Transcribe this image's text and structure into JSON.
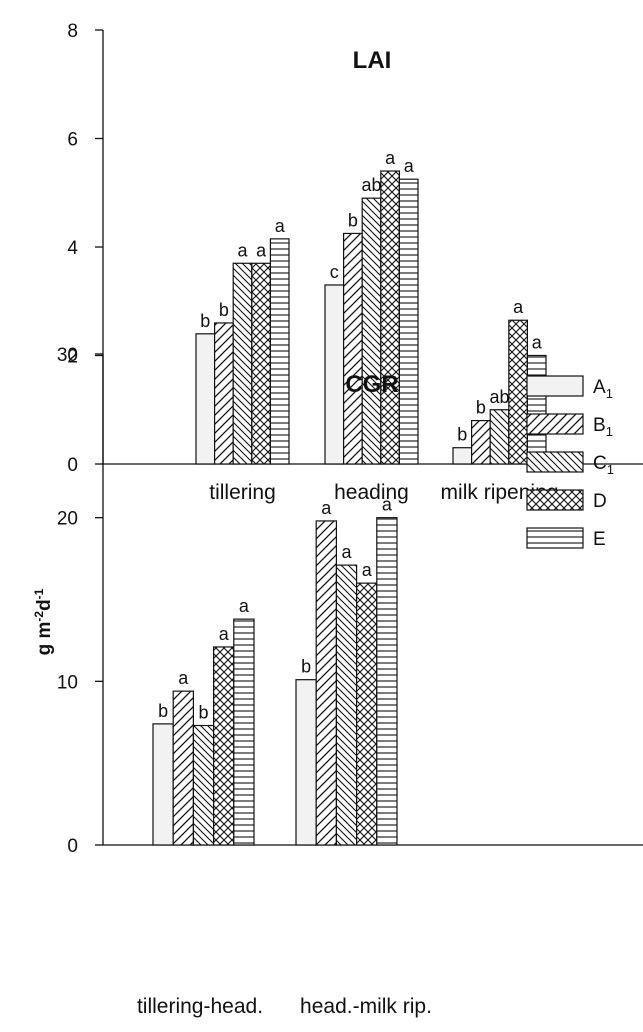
{
  "patterns": [
    "A1",
    "B1",
    "C1",
    "D",
    "E"
  ],
  "legend": {
    "entries": [
      {
        "key": "A1",
        "base": "A",
        "sub": "1"
      },
      {
        "key": "B1",
        "base": "B",
        "sub": "1"
      },
      {
        "key": "C1",
        "base": "C",
        "sub": "1"
      },
      {
        "key": "D",
        "base": "D",
        "sub": ""
      },
      {
        "key": "E",
        "base": "E",
        "sub": ""
      }
    ]
  },
  "chart_data": [
    {
      "type": "bar",
      "title": "LAI",
      "ylabel": "",
      "ylim": [
        0,
        8
      ],
      "yticks": [
        0,
        2,
        4,
        6,
        8
      ],
      "categories": [
        "tillering",
        "heading",
        "milk ripening"
      ],
      "series": [
        {
          "name": "A1",
          "values": [
            2.4,
            3.3,
            0.3
          ],
          "labels": [
            "b",
            "c",
            "b"
          ]
        },
        {
          "name": "B1",
          "values": [
            2.6,
            4.25,
            0.8
          ],
          "labels": [
            "b",
            "b",
            "b"
          ]
        },
        {
          "name": "C1",
          "values": [
            3.7,
            4.9,
            1.0
          ],
          "labels": [
            "a",
            "ab",
            "ab"
          ]
        },
        {
          "name": "D",
          "values": [
            3.7,
            5.4,
            2.65
          ],
          "labels": [
            "a",
            "a",
            "a"
          ]
        },
        {
          "name": "E",
          "values": [
            4.15,
            5.25,
            2.0
          ],
          "labels": [
            "a",
            "a",
            "a"
          ]
        }
      ],
      "legend": "none"
    },
    {
      "type": "bar",
      "title": "CGR",
      "ylabel": "g m-2d-1",
      "ylabel_parts": {
        "g": "g m",
        "exp1": "-2",
        "d": "d",
        "exp2": "-1"
      },
      "ylim": [
        0,
        30
      ],
      "yticks": [
        0,
        10,
        20,
        30
      ],
      "categories": [
        "tillering-head.",
        "head.-milk rip."
      ],
      "series": [
        {
          "name": "A1",
          "values": [
            7.4,
            10.1
          ],
          "labels": [
            "b",
            "b"
          ]
        },
        {
          "name": "B1",
          "values": [
            9.4,
            19.8
          ],
          "labels": [
            "a",
            "a"
          ]
        },
        {
          "name": "C1",
          "values": [
            7.3,
            17.1
          ],
          "labels": [
            "b",
            "a"
          ]
        },
        {
          "name": "D",
          "values": [
            12.1,
            16.0
          ],
          "labels": [
            "a",
            "a"
          ]
        },
        {
          "name": "E",
          "values": [
            13.8,
            20.0
          ],
          "labels": [
            "a",
            "a"
          ]
        }
      ],
      "legend": "top-right"
    }
  ]
}
